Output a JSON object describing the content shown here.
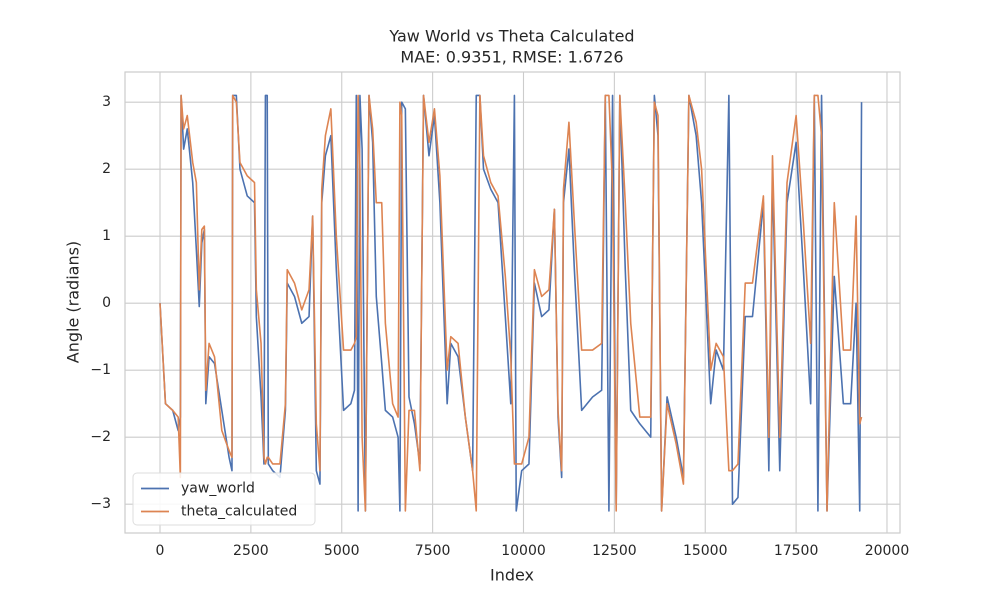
{
  "chart_data": {
    "type": "line",
    "title": "Yaw World vs Theta Calculated",
    "subtitle": "MAE: 0.9351, RMSE: 1.6726",
    "xlabel": "Index",
    "ylabel": "Angle (radians)",
    "xlim": [
      -963,
      20358
    ],
    "xticks": [
      0,
      2500,
      5000,
      7500,
      10000,
      12500,
      15000,
      17500,
      20000
    ],
    "ylim": [
      -3.43,
      3.45
    ],
    "yticks": [
      {
        "value": -3,
        "label": "−3"
      },
      {
        "value": -2,
        "label": "−2"
      },
      {
        "value": -1,
        "label": "−1"
      },
      0,
      1,
      2,
      3
    ],
    "grid": true,
    "legend": "lower left",
    "x": [
      0,
      150,
      350,
      500,
      560,
      580,
      650,
      750,
      900,
      1000,
      1080,
      1150,
      1220,
      1260,
      1350,
      1500,
      1700,
      1900,
      1980,
      2000,
      2100,
      2200,
      2400,
      2600,
      2650,
      2780,
      2860,
      2900,
      2950,
      2980,
      3100,
      3300,
      3450,
      3500,
      3700,
      3900,
      4100,
      4200,
      4300,
      4400,
      4450,
      4550,
      4700,
      4850,
      5050,
      5250,
      5350,
      5400,
      5450,
      5500,
      5560,
      5650,
      5750,
      5850,
      5950,
      6100,
      6200,
      6400,
      6550,
      6600,
      6650,
      6750,
      6850,
      7000,
      7150,
      7250,
      7400,
      7550,
      7700,
      7900,
      8000,
      8200,
      8400,
      8600,
      8700,
      8800,
      8900,
      9100,
      9300,
      9500,
      9650,
      9750,
      9800,
      9950,
      10150,
      10300,
      10500,
      10700,
      10850,
      10950,
      11050,
      11100,
      11250,
      11400,
      11600,
      11900,
      12150,
      12250,
      12350,
      12450,
      12550,
      12650,
      12800,
      12950,
      13200,
      13500,
      13600,
      13700,
      13800,
      13950,
      14200,
      14400,
      14550,
      14750,
      14900,
      15150,
      15300,
      15500,
      15650,
      15750,
      15900,
      16100,
      16300,
      16600,
      16750,
      16850,
      17050,
      17250,
      17500,
      17700,
      17900,
      18000,
      18100,
      18200,
      18350,
      18550,
      18800,
      19000,
      19150,
      19250,
      19300
    ],
    "series": [
      {
        "name": "yaw_world",
        "color": "#4c72b0",
        "values": [
          0,
          -1.5,
          -1.6,
          -1.9,
          -1.7,
          3.1,
          2.3,
          2.6,
          1.8,
          0.8,
          -0.05,
          0.9,
          1.1,
          -1.5,
          -0.8,
          -0.9,
          -1.6,
          -2.3,
          -2.5,
          3.1,
          3.1,
          2.0,
          1.6,
          1.5,
          -0.2,
          -1.4,
          -2.4,
          3.1,
          3.1,
          -2.4,
          -2.5,
          -2.6,
          -1.6,
          0.3,
          0.1,
          -0.3,
          -0.2,
          1.3,
          -2.5,
          -2.7,
          1.5,
          2.2,
          2.5,
          0.5,
          -1.6,
          -1.5,
          -1.3,
          3.1,
          -3.1,
          3.1,
          2.3,
          -3.1,
          3.1,
          2.4,
          0.1,
          -0.9,
          -1.6,
          -1.7,
          -2.0,
          -3.1,
          3.0,
          2.9,
          -1.4,
          -1.8,
          -2.4,
          3.1,
          2.2,
          2.8,
          1.5,
          -1.5,
          -0.6,
          -0.8,
          -1.7,
          -2.5,
          3.1,
          3.1,
          2.0,
          1.7,
          1.5,
          -0.2,
          -1.5,
          3.1,
          -3.1,
          -2.5,
          -2.4,
          0.3,
          -0.2,
          -0.1,
          1.4,
          -1.7,
          -2.6,
          1.5,
          2.3,
          0.5,
          -1.6,
          -1.4,
          -1.3,
          3.1,
          -3.1,
          3.1,
          -3.0,
          3.1,
          0.5,
          -1.6,
          -1.8,
          -2.0,
          3.1,
          2.5,
          -3.1,
          -1.4,
          -2.0,
          -2.6,
          3.1,
          2.5,
          1.5,
          -1.5,
          -0.7,
          -1.0,
          3.1,
          -3.0,
          -2.9,
          -0.2,
          -0.2,
          1.5,
          -2.5,
          1.9,
          -2.5,
          1.5,
          2.4,
          0.5,
          -1.5,
          3.1,
          -3.1,
          3.1,
          -3.1,
          0.4,
          -1.5,
          -1.5,
          0,
          -3.1,
          3.0
        ]
      },
      {
        "name": "theta_calculated",
        "color": "#dd8452",
        "values": [
          0,
          -1.5,
          -1.6,
          -1.7,
          -2.6,
          3.1,
          2.6,
          2.8,
          2.1,
          1.8,
          0.2,
          1.1,
          1.15,
          -1.3,
          -0.6,
          -0.8,
          -1.9,
          -2.2,
          -2.3,
          3.1,
          3.0,
          2.1,
          1.9,
          1.8,
          0.2,
          -0.6,
          -2.3,
          -2.4,
          -2.3,
          -2.3,
          -2.4,
          -2.4,
          -1.5,
          0.5,
          0.3,
          -0.1,
          0.2,
          1.3,
          -1.8,
          -2.5,
          1.7,
          2.5,
          2.9,
          1.0,
          -0.7,
          -0.7,
          -0.6,
          -0.5,
          3.1,
          2.0,
          -2.0,
          -3.1,
          3.1,
          2.6,
          1.5,
          1.5,
          -0.3,
          -1.5,
          -1.7,
          3.0,
          2.8,
          -3.1,
          -1.6,
          -1.6,
          -2.5,
          3.1,
          2.4,
          2.9,
          1.9,
          -1.0,
          -0.5,
          -0.6,
          -1.7,
          -2.5,
          -3.1,
          3.1,
          2.2,
          1.8,
          1.6,
          0.4,
          -0.8,
          -2.4,
          -2.4,
          -2.4,
          -2.0,
          0.5,
          0.1,
          0.2,
          1.4,
          -1.6,
          -2.5,
          1.7,
          2.7,
          1.2,
          -0.7,
          -0.7,
          -0.6,
          3.1,
          3.1,
          1.7,
          -3.1,
          3.1,
          1.5,
          -0.3,
          -1.7,
          -1.7,
          3.0,
          2.8,
          -3.1,
          -1.5,
          -2.1,
          -2.7,
          3.1,
          2.7,
          2.0,
          -1.0,
          -0.6,
          -0.8,
          -2.5,
          -2.5,
          -2.4,
          0.3,
          0.3,
          1.6,
          -2.0,
          2.2,
          -2.0,
          1.8,
          2.8,
          1.2,
          -0.6,
          3.1,
          3.1,
          2.5,
          -3.1,
          1.5,
          -0.7,
          -0.7,
          1.3,
          -1.8,
          -1.7
        ]
      }
    ]
  }
}
